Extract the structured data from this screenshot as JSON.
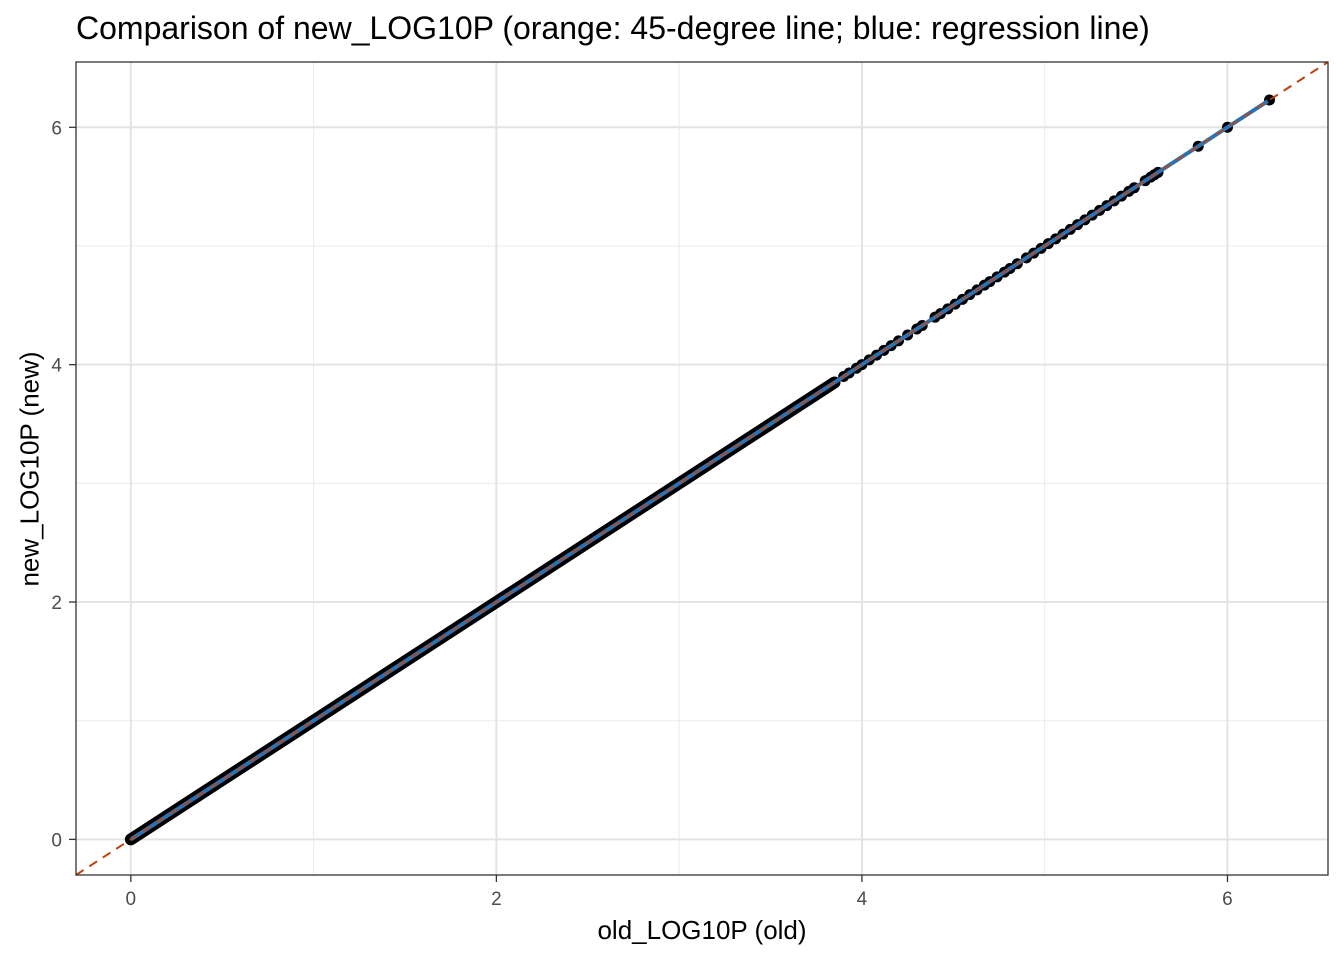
{
  "chart_data": {
    "type": "scatter",
    "title": "Comparison of new_LOG10P (orange: 45-degree line; blue: regression line)",
    "xlabel": "old_LOG10P (old)",
    "ylabel": "new_LOG10P (new)",
    "xlim": [
      -0.3,
      6.55
    ],
    "ylim": [
      -0.3,
      6.55
    ],
    "x_ticks": [
      0,
      2,
      4,
      6
    ],
    "y_ticks": [
      0,
      2,
      4,
      6
    ],
    "x_tick_labels": [
      "0",
      "2",
      "4",
      "6"
    ],
    "y_tick_labels": [
      "0",
      "2",
      "4",
      "6"
    ],
    "grid": true,
    "theme": "bw",
    "reference_line": {
      "name": "45-degree line",
      "slope": 1,
      "intercept": 0,
      "color": "#c0440f",
      "style": "dashed"
    },
    "regression_line": {
      "name": "regression line",
      "slope": 1,
      "intercept": 0,
      "x_range": [
        0,
        6.22
      ],
      "color": "#2b72b4"
    },
    "points_color": "#000000",
    "dense_range": [
      0,
      3.85
    ],
    "sparse_points": [
      [
        3.9,
        3.9
      ],
      [
        3.93,
        3.93
      ],
      [
        3.97,
        3.97
      ],
      [
        4.0,
        4.0
      ],
      [
        4.04,
        4.04
      ],
      [
        4.08,
        4.08
      ],
      [
        4.12,
        4.12
      ],
      [
        4.16,
        4.16
      ],
      [
        4.2,
        4.2
      ],
      [
        4.25,
        4.25
      ],
      [
        4.3,
        4.3
      ],
      [
        4.33,
        4.33
      ],
      [
        4.4,
        4.4
      ],
      [
        4.43,
        4.43
      ],
      [
        4.47,
        4.47
      ],
      [
        4.51,
        4.51
      ],
      [
        4.55,
        4.55
      ],
      [
        4.59,
        4.59
      ],
      [
        4.63,
        4.63
      ],
      [
        4.67,
        4.67
      ],
      [
        4.7,
        4.7
      ],
      [
        4.74,
        4.74
      ],
      [
        4.78,
        4.78
      ],
      [
        4.81,
        4.81
      ],
      [
        4.85,
        4.85
      ],
      [
        4.9,
        4.9
      ],
      [
        4.94,
        4.94
      ],
      [
        4.98,
        4.98
      ],
      [
        5.02,
        5.02
      ],
      [
        5.06,
        5.06
      ],
      [
        5.1,
        5.1
      ],
      [
        5.14,
        5.14
      ],
      [
        5.18,
        5.18
      ],
      [
        5.22,
        5.22
      ],
      [
        5.26,
        5.26
      ],
      [
        5.3,
        5.3
      ],
      [
        5.34,
        5.34
      ],
      [
        5.38,
        5.38
      ],
      [
        5.42,
        5.42
      ],
      [
        5.46,
        5.46
      ],
      [
        5.49,
        5.49
      ],
      [
        5.55,
        5.55
      ],
      [
        5.58,
        5.58
      ],
      [
        5.6,
        5.6
      ],
      [
        5.62,
        5.62
      ],
      [
        5.84,
        5.84
      ],
      [
        6.0,
        6.0
      ],
      [
        6.23,
        6.23
      ]
    ]
  }
}
